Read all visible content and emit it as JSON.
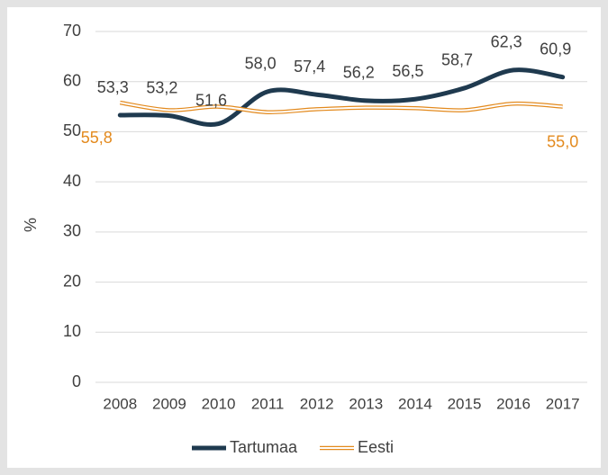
{
  "chart_data": {
    "type": "line",
    "y_label": "%",
    "categories": [
      "2008",
      "2009",
      "2010",
      "2011",
      "2012",
      "2013",
      "2014",
      "2015",
      "2016",
      "2017"
    ],
    "series": [
      {
        "name": "Tartumaa",
        "color": "#1f3a4f",
        "values": [
          53.3,
          53.2,
          51.6,
          58.0,
          57.4,
          56.2,
          56.5,
          58.7,
          62.3,
          60.9
        ],
        "value_labels": [
          "53,3",
          "53,2",
          "51,6",
          "58,0",
          "57,4",
          "56,2",
          "56,5",
          "58,7",
          "62,3",
          "60,9"
        ]
      },
      {
        "name": "Eesti",
        "color": "#e38a1e",
        "values": [
          55.8,
          54.3,
          55.0,
          53.9,
          54.5,
          54.8,
          54.7,
          54.3,
          55.6,
          55.0
        ],
        "value_labels": [
          "55,8",
          null,
          null,
          null,
          null,
          null,
          null,
          null,
          null,
          "55,0"
        ]
      }
    ],
    "ylim": [
      0,
      70
    ],
    "yticks": [
      0,
      10,
      20,
      30,
      40,
      50,
      60,
      70
    ],
    "grid": true
  }
}
